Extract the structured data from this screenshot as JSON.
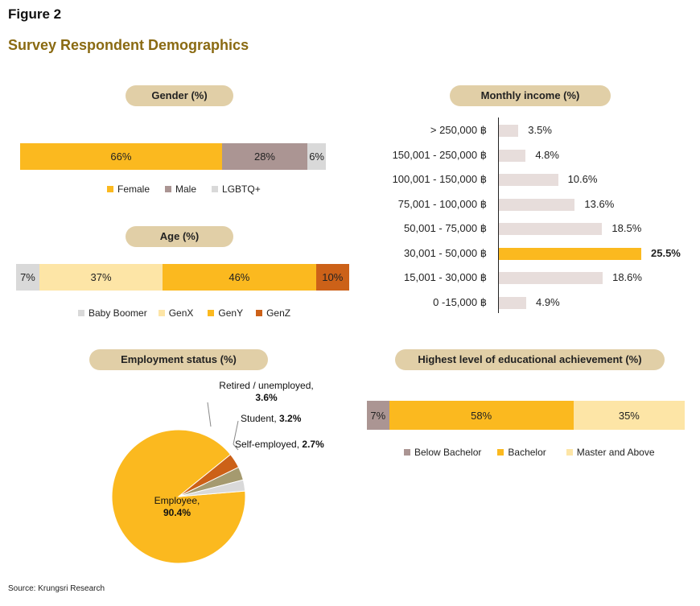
{
  "figure_label": "Figure 2",
  "title": "Survey Respondent Demographics",
  "source": "Source: Krungsri Research",
  "colors": {
    "gold": "#fbb91f",
    "light_gold": "#fde5a6",
    "mauve": "#ab9593",
    "light_grey": "#d9d9d9",
    "rust": "#cc6118",
    "income_bar": "#e7dddb",
    "pill": "#e1cfa7",
    "title": "#8a6a12"
  },
  "chart_data": [
    {
      "type": "bar",
      "stacked": true,
      "title": "Gender (%)",
      "categories": [
        "Female",
        "Male",
        "LGBTQ+"
      ],
      "values": [
        66,
        28,
        6
      ],
      "labels": [
        "66%",
        "28%",
        "6%"
      ]
    },
    {
      "type": "bar",
      "stacked": true,
      "title": "Age (%)",
      "categories": [
        "Baby Boomer",
        "GenX",
        "GenY",
        "GenZ"
      ],
      "values": [
        7,
        37,
        46,
        10
      ],
      "labels": [
        "7%",
        "37%",
        "46%",
        "10%"
      ]
    },
    {
      "type": "bar",
      "orientation": "horizontal",
      "title": "Monthly income (%)",
      "categories": [
        "> 250,000 ฿",
        "150,001 - 250,000 ฿",
        "100,001 - 150,000 ฿",
        "75,001 - 100,000 ฿",
        "50,001 - 75,000 ฿",
        "30,001 - 50,000 ฿",
        "15,001 - 30,000 ฿",
        "0 -15,000 ฿"
      ],
      "values": [
        3.5,
        4.8,
        10.6,
        13.6,
        18.5,
        25.5,
        18.6,
        4.9
      ],
      "labels": [
        "3.5%",
        "4.8%",
        "10.6%",
        "13.6%",
        "18.5%",
        "25.5%",
        "18.6%",
        "4.9%"
      ],
      "highlight_index": 5
    },
    {
      "type": "pie",
      "title": "Employment status (%)",
      "slices": [
        {
          "name": "Employee,",
          "value": 90.4,
          "label": "90.4%"
        },
        {
          "name": "Retired / unemployed,",
          "value": 3.6,
          "label": "3.6%"
        },
        {
          "name": "Student,",
          "value": 3.2,
          "label": "3.2%"
        },
        {
          "name": "Self-employed,",
          "value": 2.7,
          "label": "2.7%"
        }
      ]
    },
    {
      "type": "bar",
      "stacked": true,
      "title": "Highest level of educational achievement (%)",
      "categories": [
        "Below Bachelor",
        "Bachelor",
        "Master and Above"
      ],
      "values": [
        7,
        58,
        35
      ],
      "labels": [
        "7%",
        "58%",
        "35%"
      ]
    }
  ]
}
